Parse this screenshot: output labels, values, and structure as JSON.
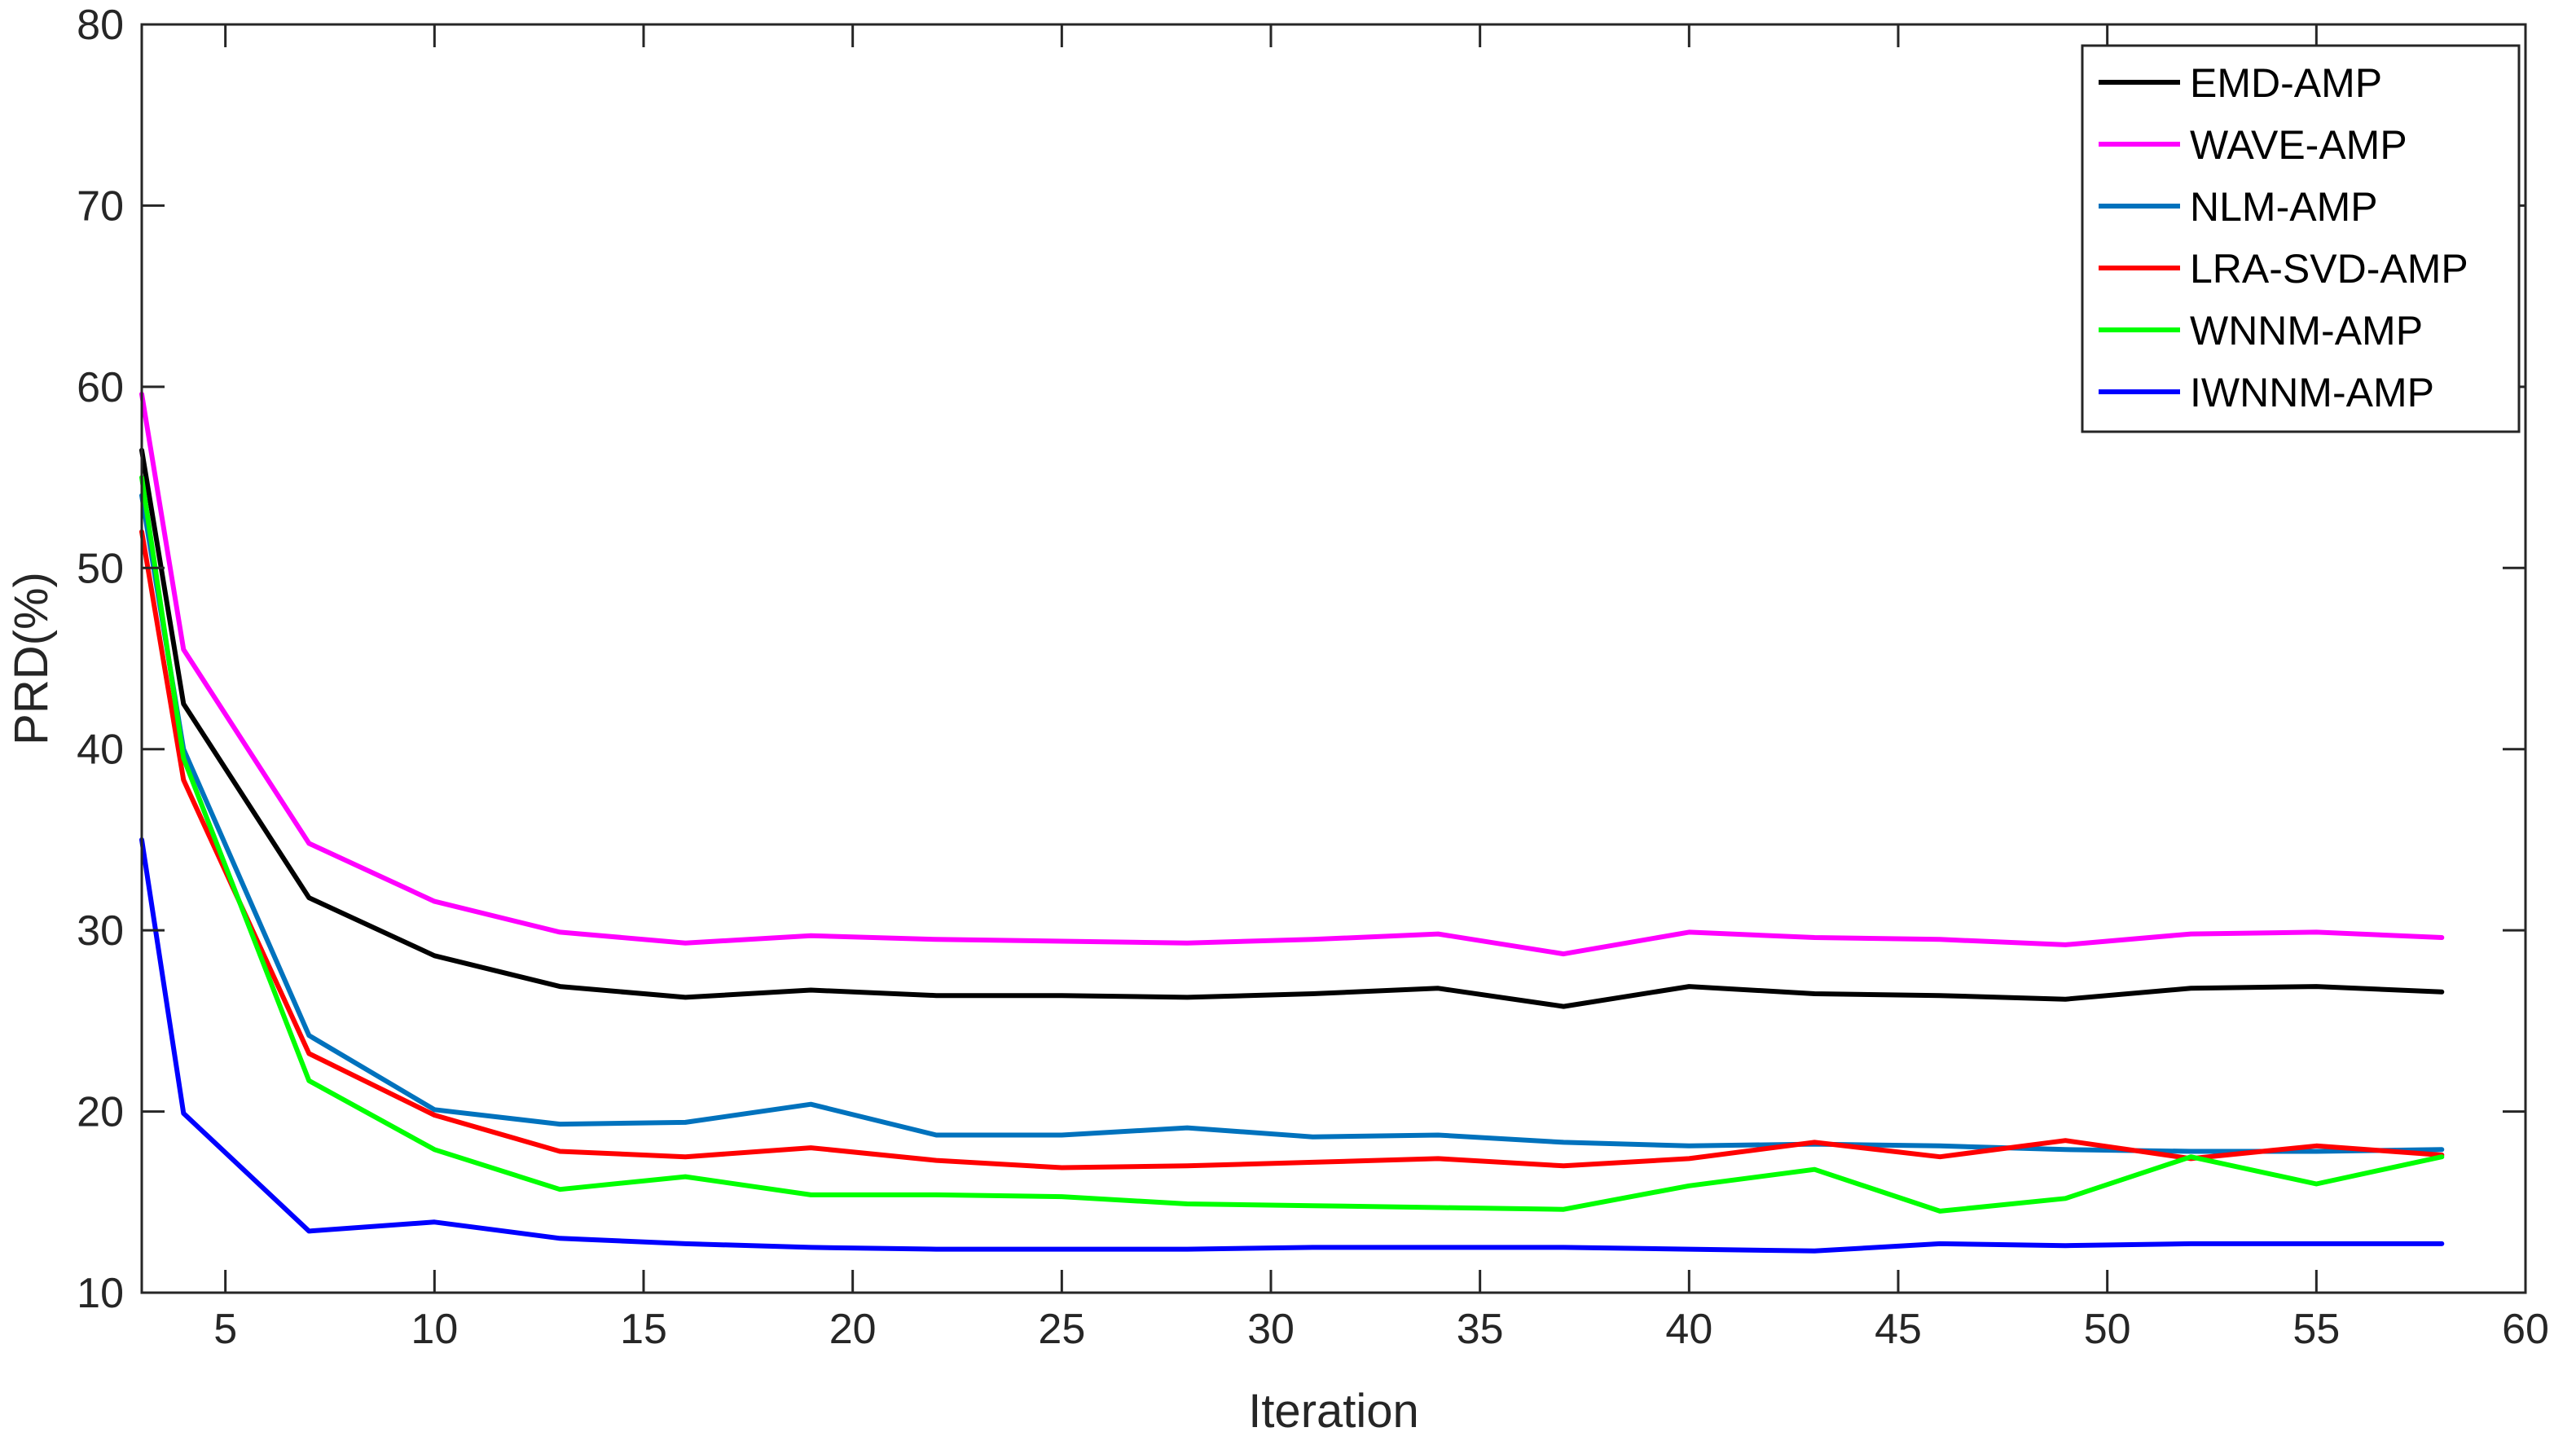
{
  "chart_data": {
    "type": "line",
    "title": "",
    "xlabel": "Iteration",
    "ylabel": "PRD(%)",
    "xlim": [
      3,
      60
    ],
    "ylim": [
      10,
      80
    ],
    "xticks": [
      5,
      10,
      15,
      20,
      25,
      30,
      35,
      40,
      45,
      50,
      55,
      60
    ],
    "yticks": [
      10,
      20,
      30,
      40,
      50,
      60,
      70,
      80
    ],
    "xtick_labels": [
      "5",
      "10",
      "15",
      "20",
      "25",
      "30",
      "35",
      "40",
      "45",
      "50",
      "55",
      "60"
    ],
    "ytick_labels": [
      "10",
      "20",
      "30",
      "40",
      "50",
      "60",
      "70",
      "80"
    ],
    "grid": false,
    "legend_position": "top-right",
    "x": [
      3,
      4,
      7,
      10,
      13,
      16,
      19,
      22,
      25,
      28,
      31,
      34,
      37,
      40,
      43,
      46,
      49,
      52,
      55,
      58
    ],
    "series": [
      {
        "name": "EMD-AMP",
        "color": "#000000",
        "values": [
          56.5,
          42.5,
          31.8,
          28.6,
          26.9,
          26.3,
          26.7,
          26.4,
          26.4,
          26.3,
          26.5,
          26.8,
          25.8,
          26.9,
          26.5,
          26.4,
          26.2,
          26.8,
          26.9,
          26.6
        ]
      },
      {
        "name": "WAVE-AMP",
        "color": "#ff00ff",
        "values": [
          59.6,
          45.5,
          34.8,
          31.6,
          29.9,
          29.3,
          29.7,
          29.5,
          29.4,
          29.3,
          29.5,
          29.8,
          28.7,
          29.9,
          29.6,
          29.5,
          29.2,
          29.8,
          29.9,
          29.6
        ]
      },
      {
        "name": "NLM-AMP",
        "color": "#0072bd",
        "values": [
          54.0,
          40.0,
          24.2,
          20.1,
          19.3,
          19.4,
          20.4,
          18.7,
          18.7,
          19.1,
          18.6,
          18.7,
          18.3,
          18.1,
          18.2,
          18.1,
          17.9,
          17.8,
          17.8,
          17.9
        ]
      },
      {
        "name": "LRA-SVD-AMP",
        "color": "#ff0000",
        "values": [
          52.0,
          38.3,
          23.2,
          19.8,
          17.8,
          17.5,
          18.0,
          17.3,
          16.9,
          17.0,
          17.2,
          17.4,
          17.0,
          17.4,
          18.3,
          17.5,
          18.4,
          17.4,
          18.1,
          17.6
        ]
      },
      {
        "name": "WNNM-AMP",
        "color": "#00ff00",
        "values": [
          55.0,
          39.5,
          21.7,
          17.9,
          15.7,
          16.4,
          15.4,
          15.4,
          15.3,
          14.9,
          14.8,
          14.7,
          14.6,
          15.9,
          16.8,
          14.5,
          15.2,
          17.5,
          16.0,
          17.5
        ]
      },
      {
        "name": "IWNNM-AMP",
        "color": "#0000ff",
        "values": [
          35.0,
          19.9,
          13.4,
          13.9,
          13.0,
          12.7,
          12.5,
          12.4,
          12.4,
          12.4,
          12.5,
          12.5,
          12.5,
          12.4,
          12.3,
          12.7,
          12.6,
          12.7,
          12.7,
          12.7
        ]
      }
    ]
  }
}
